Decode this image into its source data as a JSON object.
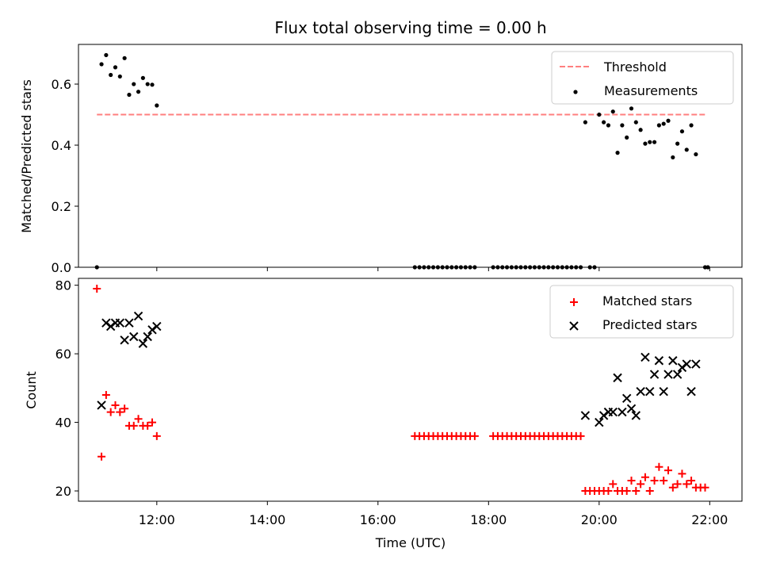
{
  "chart_data": {
    "title": "Flux total observing time = 0.00 h",
    "xlabel": "Time (UTC)",
    "x_ticks": [
      "12:00",
      "14:00",
      "16:00",
      "18:00",
      "20:00",
      "22:00"
    ],
    "x_range": [
      "10:35",
      "22:35"
    ],
    "panels": [
      {
        "type": "scatter",
        "ylabel": "Matched/Predicted stars",
        "ylim": [
          0,
          0.73
        ],
        "y_ticks": [
          "0.0",
          "0.2",
          "0.4",
          "0.6"
        ],
        "series": [
          {
            "name": "Threshold",
            "style": "dashed-line",
            "color": "#ff7f7f",
            "x": [
              "10:55",
              "21:55"
            ],
            "y": [
              0.5,
              0.5
            ]
          },
          {
            "name": "Measurements",
            "style": "dot",
            "color": "#000000",
            "points": [
              [
                "10:55",
                0.0
              ],
              [
                "11:00",
                0.665
              ],
              [
                "11:05",
                0.695
              ],
              [
                "11:10",
                0.63
              ],
              [
                "11:15",
                0.655
              ],
              [
                "11:20",
                0.625
              ],
              [
                "11:25",
                0.685
              ],
              [
                "11:30",
                0.565
              ],
              [
                "11:35",
                0.6
              ],
              [
                "11:40",
                0.575
              ],
              [
                "11:45",
                0.62
              ],
              [
                "11:50",
                0.6
              ],
              [
                "11:55",
                0.598
              ],
              [
                "12:00",
                0.53
              ],
              [
                "16:40",
                0.0
              ],
              [
                "16:45",
                0.0
              ],
              [
                "16:50",
                0.0
              ],
              [
                "16:55",
                0.0
              ],
              [
                "17:00",
                0.0
              ],
              [
                "17:05",
                0.0
              ],
              [
                "17:10",
                0.0
              ],
              [
                "17:15",
                0.0
              ],
              [
                "17:20",
                0.0
              ],
              [
                "17:25",
                0.0
              ],
              [
                "17:30",
                0.0
              ],
              [
                "17:35",
                0.0
              ],
              [
                "17:40",
                0.0
              ],
              [
                "17:45",
                0.0
              ],
              [
                "18:05",
                0.0
              ],
              [
                "18:10",
                0.0
              ],
              [
                "18:15",
                0.0
              ],
              [
                "18:20",
                0.0
              ],
              [
                "18:25",
                0.0
              ],
              [
                "18:30",
                0.0
              ],
              [
                "18:35",
                0.0
              ],
              [
                "18:40",
                0.0
              ],
              [
                "18:45",
                0.0
              ],
              [
                "18:50",
                0.0
              ],
              [
                "18:55",
                0.0
              ],
              [
                "19:00",
                0.0
              ],
              [
                "19:05",
                0.0
              ],
              [
                "19:10",
                0.0
              ],
              [
                "19:15",
                0.0
              ],
              [
                "19:20",
                0.0
              ],
              [
                "19:25",
                0.0
              ],
              [
                "19:30",
                0.0
              ],
              [
                "19:35",
                0.0
              ],
              [
                "19:40",
                0.0
              ],
              [
                "19:45",
                0.475
              ],
              [
                "19:50",
                0.0
              ],
              [
                "19:55",
                0.0
              ],
              [
                "20:00",
                0.5
              ],
              [
                "20:05",
                0.475
              ],
              [
                "20:10",
                0.465
              ],
              [
                "20:15",
                0.51
              ],
              [
                "20:20",
                0.375
              ],
              [
                "20:25",
                0.465
              ],
              [
                "20:30",
                0.425
              ],
              [
                "20:35",
                0.52
              ],
              [
                "20:40",
                0.475
              ],
              [
                "20:45",
                0.45
              ],
              [
                "20:50",
                0.405
              ],
              [
                "20:55",
                0.41
              ],
              [
                "21:00",
                0.41
              ],
              [
                "21:05",
                0.465
              ],
              [
                "21:10",
                0.47
              ],
              [
                "21:15",
                0.48
              ],
              [
                "21:20",
                0.36
              ],
              [
                "21:25",
                0.405
              ],
              [
                "21:30",
                0.445
              ],
              [
                "21:35",
                0.385
              ],
              [
                "21:40",
                0.465
              ],
              [
                "21:45",
                0.37
              ],
              [
                "21:55",
                0.0
              ],
              [
                "21:58",
                0.0
              ]
            ]
          }
        ],
        "legend": {
          "placement": "top-right",
          "entries": [
            "Threshold",
            "Measurements"
          ]
        }
      },
      {
        "type": "scatter",
        "ylabel": "Count",
        "ylim": [
          17,
          82
        ],
        "y_ticks": [
          "20",
          "40",
          "60",
          "80"
        ],
        "series": [
          {
            "name": "Matched stars",
            "style": "plus",
            "color": "#ff0000",
            "points": [
              [
                "10:55",
                79
              ],
              [
                "11:00",
                30
              ],
              [
                "11:05",
                48
              ],
              [
                "11:10",
                43
              ],
              [
                "11:15",
                45
              ],
              [
                "11:20",
                43
              ],
              [
                "11:25",
                44
              ],
              [
                "11:30",
                39
              ],
              [
                "11:35",
                39
              ],
              [
                "11:40",
                41
              ],
              [
                "11:45",
                39
              ],
              [
                "11:50",
                39
              ],
              [
                "11:55",
                40
              ],
              [
                "12:00",
                36
              ],
              [
                "16:40",
                36
              ],
              [
                "16:45",
                36
              ],
              [
                "16:50",
                36
              ],
              [
                "16:55",
                36
              ],
              [
                "17:00",
                36
              ],
              [
                "17:05",
                36
              ],
              [
                "17:10",
                36
              ],
              [
                "17:15",
                36
              ],
              [
                "17:20",
                36
              ],
              [
                "17:25",
                36
              ],
              [
                "17:30",
                36
              ],
              [
                "17:35",
                36
              ],
              [
                "17:40",
                36
              ],
              [
                "17:45",
                36
              ],
              [
                "18:05",
                36
              ],
              [
                "18:10",
                36
              ],
              [
                "18:15",
                36
              ],
              [
                "18:20",
                36
              ],
              [
                "18:25",
                36
              ],
              [
                "18:30",
                36
              ],
              [
                "18:35",
                36
              ],
              [
                "18:40",
                36
              ],
              [
                "18:45",
                36
              ],
              [
                "18:50",
                36
              ],
              [
                "18:55",
                36
              ],
              [
                "19:00",
                36
              ],
              [
                "19:05",
                36
              ],
              [
                "19:10",
                36
              ],
              [
                "19:15",
                36
              ],
              [
                "19:20",
                36
              ],
              [
                "19:25",
                36
              ],
              [
                "19:30",
                36
              ],
              [
                "19:35",
                36
              ],
              [
                "19:40",
                36
              ],
              [
                "19:45",
                20
              ],
              [
                "19:50",
                20
              ],
              [
                "19:55",
                20
              ],
              [
                "20:00",
                20
              ],
              [
                "20:05",
                20
              ],
              [
                "20:10",
                20
              ],
              [
                "20:15",
                22
              ],
              [
                "20:20",
                20
              ],
              [
                "20:25",
                20
              ],
              [
                "20:30",
                20
              ],
              [
                "20:35",
                23
              ],
              [
                "20:40",
                20
              ],
              [
                "20:45",
                22
              ],
              [
                "20:50",
                24
              ],
              [
                "20:55",
                20
              ],
              [
                "21:00",
                23
              ],
              [
                "21:05",
                27
              ],
              [
                "21:10",
                23
              ],
              [
                "21:15",
                26
              ],
              [
                "21:20",
                21
              ],
              [
                "21:25",
                22
              ],
              [
                "21:30",
                25
              ],
              [
                "21:35",
                22
              ],
              [
                "21:40",
                23
              ],
              [
                "21:45",
                21
              ],
              [
                "21:50",
                21
              ],
              [
                "21:55",
                21
              ]
            ]
          },
          {
            "name": "Predicted stars",
            "style": "x",
            "color": "#000000",
            "points": [
              [
                "11:00",
                45
              ],
              [
                "11:05",
                69
              ],
              [
                "11:10",
                68
              ],
              [
                "11:15",
                69
              ],
              [
                "11:20",
                69
              ],
              [
                "11:25",
                64
              ],
              [
                "11:30",
                69
              ],
              [
                "11:35",
                65
              ],
              [
                "11:40",
                71
              ],
              [
                "11:45",
                63
              ],
              [
                "11:50",
                65
              ],
              [
                "11:55",
                67
              ],
              [
                "12:00",
                68
              ],
              [
                "19:45",
                42
              ],
              [
                "20:00",
                40
              ],
              [
                "20:05",
                42
              ],
              [
                "20:10",
                43
              ],
              [
                "20:15",
                43
              ],
              [
                "20:20",
                53
              ],
              [
                "20:25",
                43
              ],
              [
                "20:30",
                47
              ],
              [
                "20:35",
                44
              ],
              [
                "20:40",
                42
              ],
              [
                "20:45",
                49
              ],
              [
                "20:50",
                59
              ],
              [
                "20:55",
                49
              ],
              [
                "21:00",
                54
              ],
              [
                "21:05",
                58
              ],
              [
                "21:10",
                49
              ],
              [
                "21:15",
                54
              ],
              [
                "21:20",
                58
              ],
              [
                "21:25",
                54
              ],
              [
                "21:30",
                56
              ],
              [
                "21:35",
                57
              ],
              [
                "21:40",
                49
              ],
              [
                "21:45",
                57
              ]
            ]
          }
        ],
        "legend": {
          "placement": "top-right",
          "entries": [
            "Matched stars",
            "Predicted stars"
          ]
        }
      }
    ]
  }
}
